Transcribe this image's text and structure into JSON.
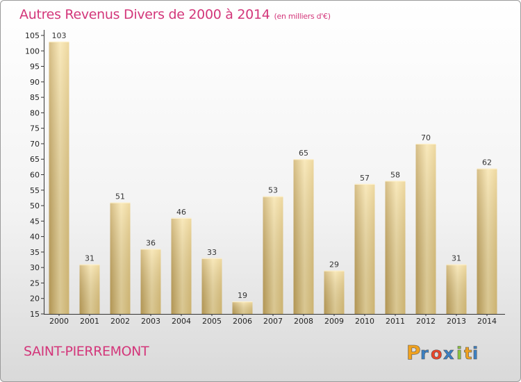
{
  "chart_data": {
    "type": "bar",
    "title": "Autres Revenus Divers de 2000 à 2014",
    "subtitle": "(en milliers d'€)",
    "categories": [
      "2000",
      "2001",
      "2002",
      "2003",
      "2004",
      "2005",
      "2006",
      "2007",
      "2008",
      "2009",
      "2010",
      "2011",
      "2012",
      "2013",
      "2014"
    ],
    "values": [
      103,
      31,
      51,
      36,
      46,
      33,
      19,
      53,
      65,
      29,
      57,
      58,
      70,
      31,
      62
    ],
    "ylim": [
      15,
      105
    ],
    "yticks": [
      15,
      20,
      25,
      30,
      35,
      40,
      45,
      50,
      55,
      60,
      65,
      70,
      75,
      80,
      85,
      90,
      95,
      100,
      105
    ],
    "xlabel": "",
    "ylabel": "",
    "grid": false,
    "bar_color": "#e8cb80",
    "bar_color_light": "#f7e2a6",
    "bar_color_dark": "#c9a95f"
  },
  "commune": "SAINT-PIERREMONT",
  "logo": {
    "letters": [
      "P",
      "r",
      "o",
      "x",
      "i",
      "t",
      "i"
    ],
    "colors": [
      "#f0a21f",
      "#3b80c3",
      "#e8452a",
      "#3b80c3",
      "#8cc63f",
      "#f0a21f",
      "#3b80c3"
    ]
  },
  "theme": {
    "accent": "#d3367a"
  }
}
